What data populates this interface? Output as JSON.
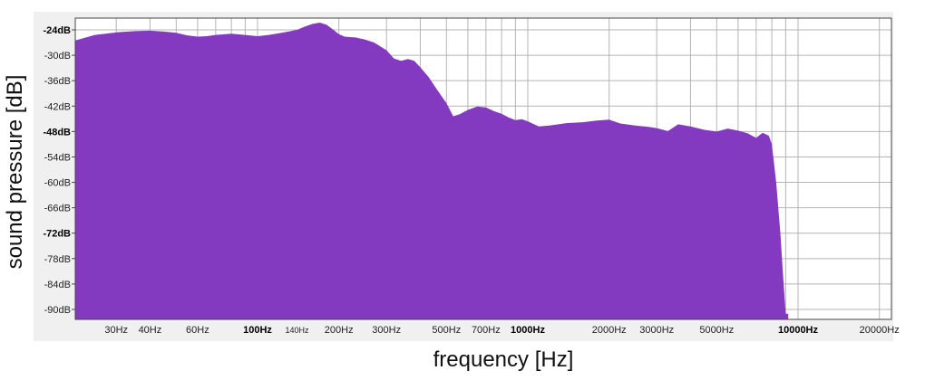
{
  "chart_data": {
    "type": "area",
    "title": "",
    "xlabel": "frequency [Hz]",
    "ylabel": "sound pressure  [dB]",
    "x_scale": "log",
    "xlim": [
      20,
      22000
    ],
    "ylim": [
      -91,
      -22
    ],
    "grid": true,
    "fill_color": "#8439c1",
    "x_ticks": [
      {
        "value": 30,
        "label": "30Hz",
        "style": "normal"
      },
      {
        "value": 40,
        "label": "40Hz",
        "style": "normal"
      },
      {
        "value": 60,
        "label": "60Hz",
        "style": "normal"
      },
      {
        "value": 100,
        "label": "100Hz",
        "style": "bold"
      },
      {
        "value": 140,
        "label": "140Hz",
        "style": "small"
      },
      {
        "value": 200,
        "label": "200Hz",
        "style": "normal"
      },
      {
        "value": 300,
        "label": "300Hz",
        "style": "normal"
      },
      {
        "value": 500,
        "label": "500Hz",
        "style": "normal"
      },
      {
        "value": 700,
        "label": "700Hz",
        "style": "normal"
      },
      {
        "value": 1000,
        "label": "1000Hz",
        "style": "bold"
      },
      {
        "value": 2000,
        "label": "2000Hz",
        "style": "normal"
      },
      {
        "value": 3000,
        "label": "3000Hz",
        "style": "normal"
      },
      {
        "value": 5000,
        "label": "5000Hz",
        "style": "normal"
      },
      {
        "value": 10000,
        "label": "10000Hz",
        "style": "bold"
      },
      {
        "value": 20000,
        "label": "20000Hz",
        "style": "normal"
      }
    ],
    "x_gridlines": [
      30,
      40,
      50,
      60,
      70,
      80,
      90,
      100,
      200,
      300,
      400,
      500,
      600,
      700,
      800,
      900,
      1000,
      2000,
      3000,
      4000,
      5000,
      6000,
      7000,
      8000,
      9000,
      10000,
      20000
    ],
    "y_ticks": [
      {
        "value": -24,
        "label": "-24dB",
        "style": "bold"
      },
      {
        "value": -30,
        "label": "-30dB",
        "style": "normal"
      },
      {
        "value": -36,
        "label": "-36dB",
        "style": "normal"
      },
      {
        "value": -42,
        "label": "-42dB",
        "style": "normal"
      },
      {
        "value": -48,
        "label": "-48dB",
        "style": "bold"
      },
      {
        "value": -54,
        "label": "-54dB",
        "style": "normal"
      },
      {
        "value": -60,
        "label": "-60dB",
        "style": "normal"
      },
      {
        "value": -66,
        "label": "-66dB",
        "style": "normal"
      },
      {
        "value": -72,
        "label": "-72dB",
        "style": "bold"
      },
      {
        "value": -78,
        "label": "-78dB",
        "style": "normal"
      },
      {
        "value": -84,
        "label": "-84dB",
        "style": "normal"
      },
      {
        "value": -90,
        "label": "-90dB",
        "style": "normal"
      }
    ],
    "series": [
      {
        "x": [
          20,
          25,
          30,
          35,
          40,
          45,
          50,
          55,
          60,
          65,
          70,
          80,
          90,
          100,
          110,
          120,
          130,
          140,
          150,
          160,
          170,
          180,
          190,
          200,
          210,
          230,
          250,
          270,
          300,
          320,
          340,
          360,
          380,
          400,
          430,
          460,
          500,
          530,
          560,
          600,
          650,
          700,
          750,
          800,
          850,
          900,
          950,
          1000,
          1100,
          1200,
          1400,
          1600,
          1800,
          2000,
          2200,
          2500,
          2800,
          3000,
          3300,
          3600,
          4000,
          4500,
          5000,
          5500,
          6000,
          6500,
          7000,
          7400,
          7800,
          8000,
          8300,
          8600,
          8800,
          9000,
          9200
        ],
        "y": [
          -26.5,
          -25.2,
          -24.6,
          -24.3,
          -24.2,
          -24.4,
          -24.7,
          -25.3,
          -25.6,
          -25.5,
          -25.2,
          -24.9,
          -25.2,
          -25.5,
          -25.2,
          -24.8,
          -24.4,
          -24.0,
          -23.2,
          -22.6,
          -22.3,
          -22.8,
          -23.9,
          -25.0,
          -25.6,
          -25.8,
          -26.3,
          -27.0,
          -28.8,
          -30.8,
          -31.3,
          -30.9,
          -31.3,
          -32.8,
          -35.2,
          -38.0,
          -41.3,
          -44.4,
          -43.9,
          -42.9,
          -42.1,
          -42.3,
          -43.2,
          -43.8,
          -44.7,
          -45.3,
          -45.1,
          -45.6,
          -46.8,
          -46.6,
          -46.0,
          -45.8,
          -45.4,
          -45.2,
          -46.1,
          -46.6,
          -46.9,
          -47.2,
          -47.9,
          -46.3,
          -46.8,
          -47.6,
          -48.0,
          -47.3,
          -47.8,
          -48.4,
          -49.5,
          -48.3,
          -49.0,
          -51.0,
          -60.0,
          -72.0,
          -82.0,
          -91.0,
          -91.0
        ]
      }
    ]
  }
}
